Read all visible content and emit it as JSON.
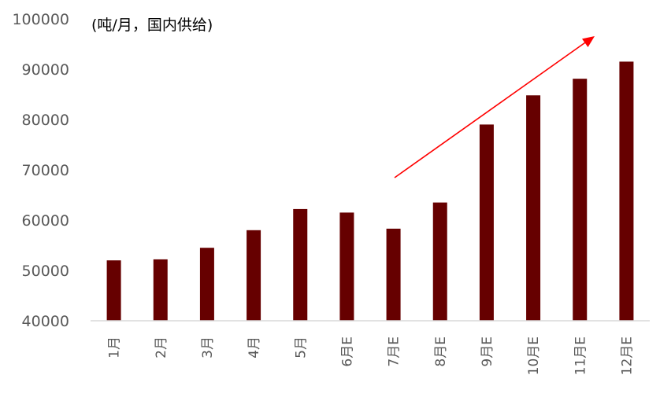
{
  "chart_data": {
    "type": "bar",
    "unit_label": "(吨/月，国内供给)",
    "categories": [
      "1月",
      "2月",
      "3月",
      "4月",
      "5月",
      "6月E",
      "7月E",
      "8月E",
      "9月E",
      "10月E",
      "11月E",
      "12月E"
    ],
    "values": [
      52000,
      52200,
      54500,
      58000,
      62200,
      61500,
      58300,
      63500,
      79000,
      84800,
      88100,
      91500
    ],
    "ylim": [
      40000,
      100000
    ],
    "yticks": [
      40000,
      50000,
      60000,
      70000,
      80000,
      90000,
      100000
    ],
    "grid": false,
    "legend": "none",
    "annotations": [
      {
        "type": "arrow",
        "color": "#ff0000",
        "meaning": "upward trend"
      }
    ]
  },
  "colors": {
    "bar": "#660000",
    "axis": "#d9d9d9",
    "tick_text": "#595959",
    "arrow": "#ff0000"
  }
}
